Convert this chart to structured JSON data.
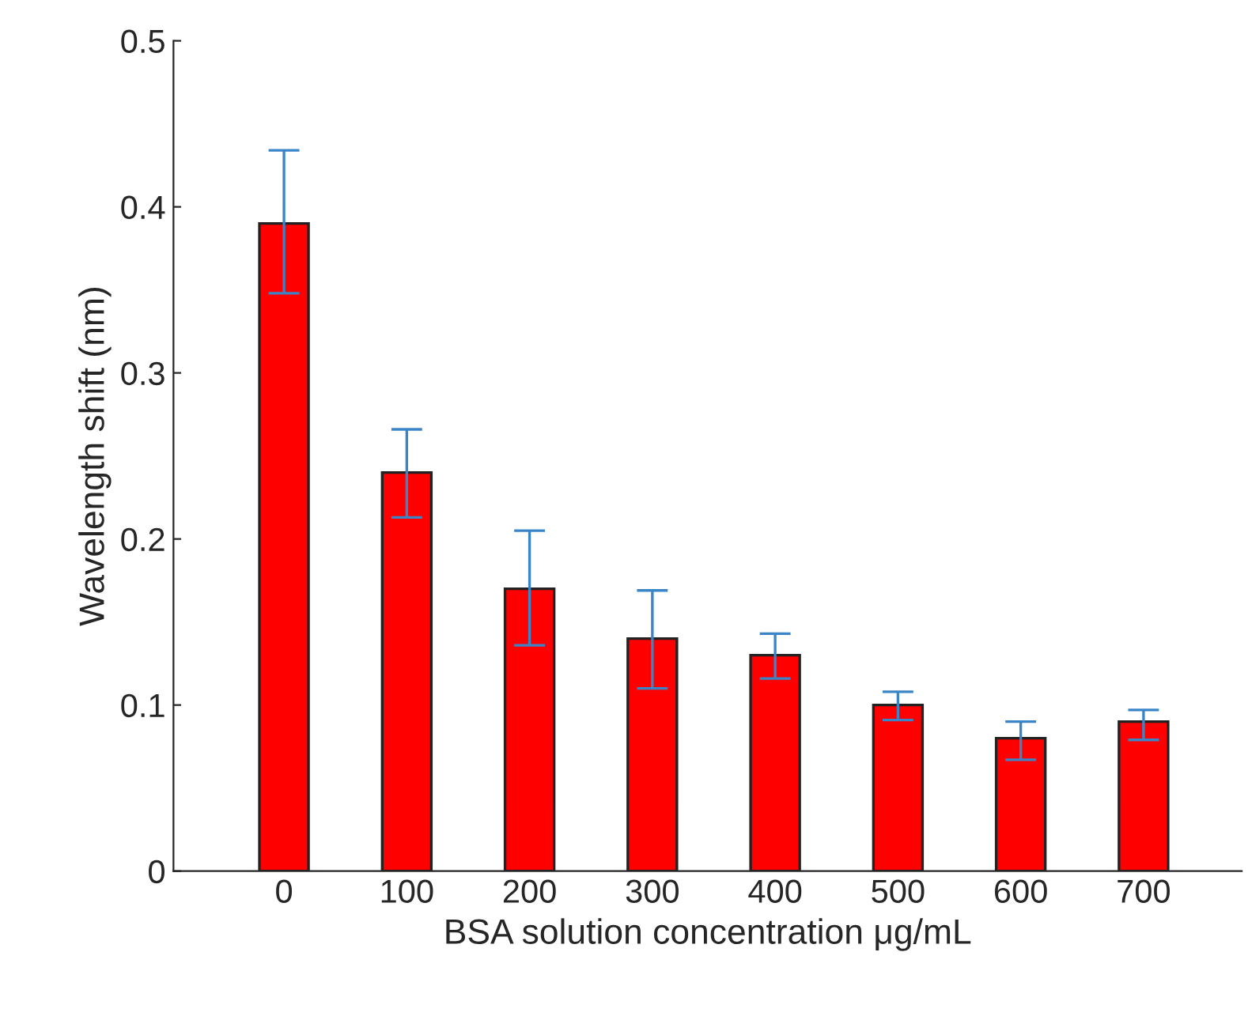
{
  "chart_data": {
    "type": "bar",
    "xlabel": "BSA solution concentration μg/mL",
    "ylabel": "Wavelength shift (nm)",
    "categories": [
      "0",
      "100",
      "200",
      "300",
      "400",
      "500",
      "600",
      "700"
    ],
    "values": [
      0.39,
      0.24,
      0.17,
      0.14,
      0.13,
      0.1,
      0.08,
      0.09
    ],
    "errors": [
      [
        0.348,
        0.434
      ],
      [
        0.213,
        0.266
      ],
      [
        0.136,
        0.205
      ],
      [
        0.11,
        0.169
      ],
      [
        0.116,
        0.143
      ],
      [
        0.091,
        0.108
      ],
      [
        0.067,
        0.09
      ],
      [
        0.079,
        0.097
      ]
    ],
    "color": "#ff0000",
    "ylim": [
      0,
      0.5
    ],
    "yticks": [
      0,
      0.1,
      0.2,
      0.3,
      0.4,
      0.5
    ],
    "grid": false
  }
}
